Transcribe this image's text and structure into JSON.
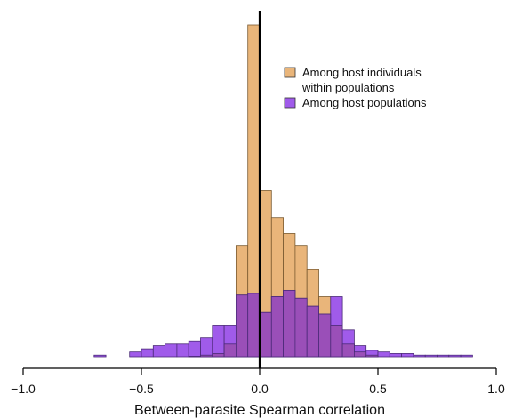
{
  "chart_data": {
    "type": "bar",
    "subtype": "overlaid-histogram",
    "xlabel": "Between-parasite Spearman correlation",
    "ylabel": "",
    "title": "",
    "xlim": [
      -1.0,
      1.0
    ],
    "x_ticks": [
      -1.0,
      -0.5,
      0.0,
      0.5,
      1.0
    ],
    "x_tick_labels": [
      "−1.0",
      "−0.5",
      "0.0",
      "0.5",
      "1.0"
    ],
    "y_axis_shown": false,
    "reference_line_x": 0.0,
    "legend_position": "top-right",
    "bin_width": 0.05,
    "bin_starts": [
      -0.7,
      -0.65,
      -0.6,
      -0.55,
      -0.5,
      -0.45,
      -0.4,
      -0.35,
      -0.3,
      -0.25,
      -0.2,
      -0.15,
      -0.1,
      -0.05,
      0.0,
      0.05,
      0.1,
      0.15,
      0.2,
      0.25,
      0.3,
      0.35,
      0.4,
      0.45,
      0.5,
      0.55,
      0.6,
      0.65,
      0.7,
      0.75,
      0.8,
      0.85,
      0.9,
      0.95
    ],
    "series": [
      {
        "name": "Among host individuals within populations",
        "color": "#E9B57A",
        "values": [
          0,
          0,
          0,
          0,
          0,
          0,
          0,
          0,
          0.3,
          1,
          2,
          8,
          70,
          210,
          105,
          88,
          78,
          70,
          55,
          38,
          20,
          8,
          3,
          1,
          0,
          0,
          0,
          0,
          0,
          0,
          0,
          0,
          0,
          0
        ]
      },
      {
        "name": "Among host populations",
        "color": "#A05BEA",
        "values": [
          1,
          0,
          0,
          3,
          5,
          7,
          8,
          8,
          10,
          12,
          20,
          20,
          39,
          40,
          28,
          38,
          42,
          37,
          32,
          27,
          38,
          17,
          7,
          4,
          3,
          2,
          2,
          1,
          1,
          1,
          1,
          1,
          0,
          0
        ]
      }
    ],
    "overlap_color": "#9A4FB8"
  }
}
